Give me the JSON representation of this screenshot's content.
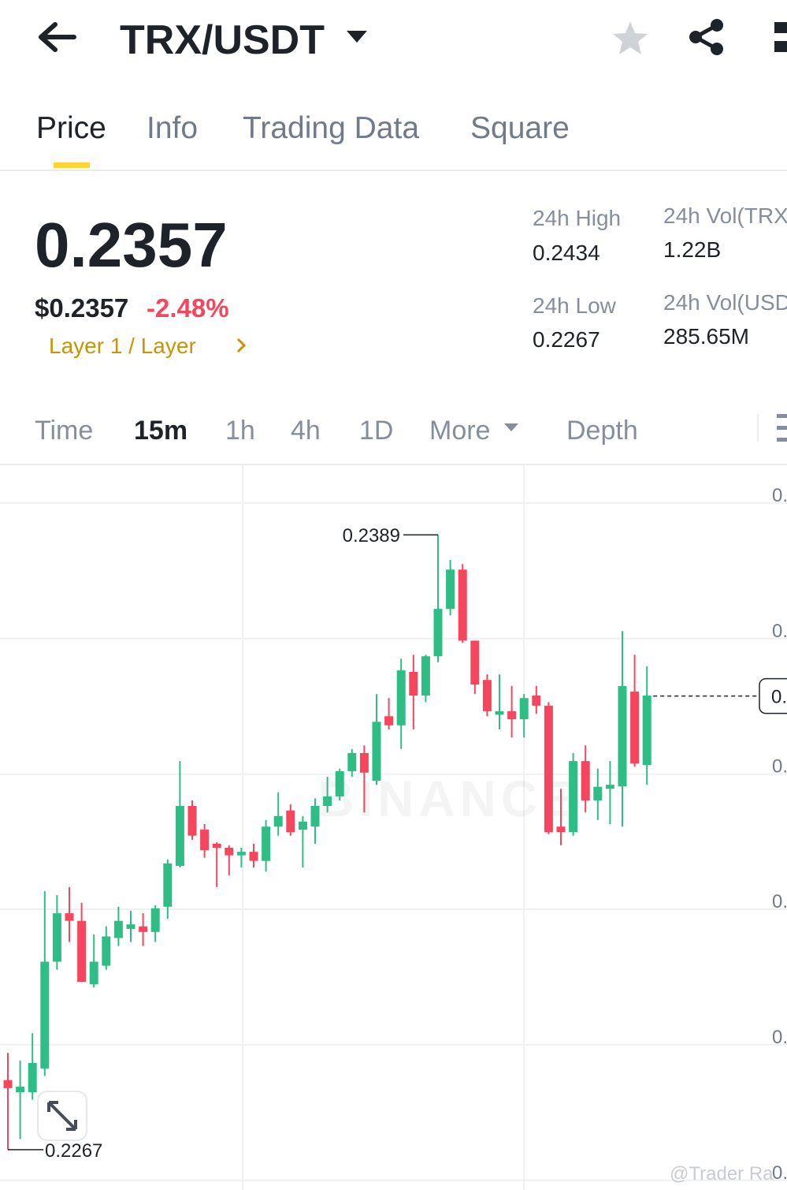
{
  "header": {
    "title": "TRX/USDT"
  },
  "tabs": [
    "Price",
    "Info",
    "Trading Data",
    "Square"
  ],
  "price": {
    "last": "0.2357",
    "usd": "$0.2357",
    "change": "-2.48%",
    "tag": "Layer 1 / Layer"
  },
  "stats": [
    {
      "label": "24h High",
      "value": "0.2434"
    },
    {
      "label": "24h Vol(TRX",
      "value": "1.22B"
    },
    {
      "label": "24h Low",
      "value": "0.2267"
    },
    {
      "label": "24h Vol(USD",
      "value": "285.65M"
    }
  ],
  "intervals": [
    "Time",
    "15m",
    "1h",
    "4h",
    "1D",
    "More",
    "Depth"
  ],
  "chart_data": {
    "type": "candlestick",
    "up_color": "#2ebd85",
    "down_color": "#f6465d",
    "open": [
      0.22808,
      0.22784,
      0.22784,
      0.22831,
      0.23043,
      0.23139,
      0.23124,
      0.22998,
      0.23035,
      0.2309,
      0.23108,
      0.23113,
      0.23102,
      0.23152,
      0.23233,
      0.23352,
      0.23305,
      0.23277,
      0.23269,
      0.23254,
      0.23261,
      0.23243,
      0.23311,
      0.23343,
      0.23305,
      0.23311,
      0.23352,
      0.23371,
      0.23421,
      0.23457,
      0.23402,
      0.2353,
      0.23512,
      0.23618,
      0.23571,
      0.23649,
      0.23743,
      0.23821,
      0.2368,
      0.23602,
      0.23533,
      0.2354,
      0.23524,
      0.23571,
      0.23551,
      0.23311,
      0.233,
      0.23441,
      0.23363,
      0.23386,
      0.23391,
      0.23579,
      0.23433
    ],
    "high": [
      0.22862,
      0.22847,
      0.22901,
      0.23183,
      0.23175,
      0.23191,
      0.2316,
      0.23097,
      0.23113,
      0.23152,
      0.23144,
      0.23139,
      0.23155,
      0.23246,
      0.23441,
      0.23363,
      0.23316,
      0.2328,
      0.23274,
      0.23269,
      0.23277,
      0.23324,
      0.23379,
      0.23355,
      0.23332,
      0.23367,
      0.2341,
      0.23426,
      0.23465,
      0.23472,
      0.23574,
      0.23566,
      0.23644,
      0.23652,
      0.23652,
      0.2389,
      0.2384,
      0.23832,
      0.2368,
      0.23613,
      0.23613,
      0.2359,
      0.23574,
      0.2359,
      0.23558,
      0.23386,
      0.23457,
      0.23472,
      0.23426,
      0.23441,
      0.23699,
      0.23652,
      0.23629
    ],
    "low": [
      0.2267,
      0.22691,
      0.22769,
      0.22816,
      0.23027,
      0.23082,
      0.23003,
      0.22992,
      0.23027,
      0.23074,
      0.23082,
      0.23074,
      0.23082,
      0.23128,
      0.2323,
      0.23285,
      0.23249,
      0.23191,
      0.23214,
      0.2323,
      0.2323,
      0.23222,
      0.23293,
      0.23293,
      0.2323,
      0.23277,
      0.23339,
      0.23363,
      0.2341,
      0.23339,
      0.23394,
      0.23504,
      0.23465,
      0.23504,
      0.23558,
      0.23637,
      0.2373,
      0.23676,
      0.23574,
      0.2353,
      0.23504,
      0.23488,
      0.23488,
      0.23535,
      0.23296,
      0.23274,
      0.23293,
      0.23339,
      0.23324,
      0.23316,
      0.23311,
      0.2343,
      0.23394
    ],
    "close": [
      0.22792,
      0.22795,
      0.22842,
      0.23043,
      0.23139,
      0.23124,
      0.23003,
      0.23043,
      0.23093,
      0.23124,
      0.23117,
      0.23102,
      0.23149,
      0.23238,
      0.23352,
      0.23293,
      0.23264,
      0.23269,
      0.23254,
      0.23261,
      0.23243,
      0.23311,
      0.23332,
      0.233,
      0.23321,
      0.23352,
      0.23371,
      0.23421,
      0.23457,
      0.23418,
      0.23519,
      0.23512,
      0.23621,
      0.23571,
      0.23649,
      0.23743,
      0.23821,
      0.2368,
      0.23593,
      0.2354,
      0.2354,
      0.23524,
      0.23566,
      0.23551,
      0.233,
      0.233,
      0.23441,
      0.23363,
      0.2339,
      0.23394,
      0.2359,
      0.23436,
      0.23571
    ],
    "ylim": [
      0.22604,
      0.24028
    ],
    "yticks": [
      {
        "value": 0.23953,
        "label": "0."
      },
      {
        "value": 0.23684,
        "label": "0."
      },
      {
        "value": 0.23415,
        "label": "0."
      },
      {
        "value": 0.23147,
        "label": "0."
      },
      {
        "value": 0.22878,
        "label": "0."
      },
      {
        "value": 0.22609,
        "label": "0."
      }
    ],
    "last_price": 0.2357,
    "last_price_label": "0.",
    "annotations": [
      0.2389,
      0.2267
    ],
    "watermark": "BINANCE"
  },
  "credit": "@Trader Ra"
}
